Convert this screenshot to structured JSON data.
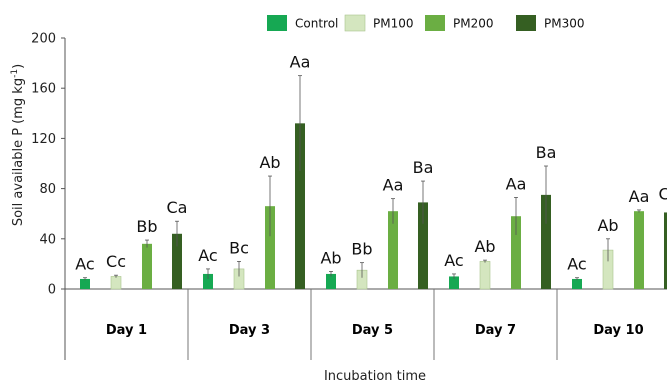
{
  "chart_data": {
    "type": "bar",
    "xlabel": "Incubation time",
    "ylabel": "Soil available P (mg kg",
    "ylabel_superscript": "-1",
    "ylabel_close": ")",
    "ylim": [
      0,
      200
    ],
    "yticks": [
      0,
      40,
      80,
      120,
      160,
      200
    ],
    "grid": false,
    "legend_position": "top",
    "categories": [
      "Day 1",
      "Day 3",
      "Day 5",
      "Day 7",
      "Day 10"
    ],
    "series": [
      {
        "name": "Control",
        "color": "#16a853",
        "values": [
          8,
          12,
          12,
          10,
          8
        ],
        "errors": [
          1,
          4,
          2,
          2,
          1
        ],
        "labels": [
          "Ac",
          "Ac",
          "Ab",
          "Ac",
          "Ac"
        ]
      },
      {
        "name": "PM100",
        "color": "#d4e6bf",
        "values": [
          10,
          16,
          15,
          22,
          31
        ],
        "errors": [
          1,
          6,
          6,
          1,
          9
        ],
        "labels": [
          "Cc",
          "Bc",
          "Bb",
          "Ab",
          "Ab"
        ]
      },
      {
        "name": "PM200",
        "color": "#6bae43",
        "values": [
          36,
          66,
          62,
          58,
          62
        ],
        "errors": [
          3,
          24,
          10,
          15,
          1
        ],
        "labels": [
          "Bb",
          "Ab",
          "Aa",
          "Aa",
          "Aa"
        ]
      },
      {
        "name": "PM300",
        "color": "#355f22",
        "values": [
          44,
          132,
          69,
          75,
          61
        ],
        "errors": [
          10,
          38,
          17,
          23,
          4
        ],
        "labels": [
          "Ca",
          "Aa",
          "Ba",
          "Ba",
          "Ca"
        ]
      }
    ]
  }
}
